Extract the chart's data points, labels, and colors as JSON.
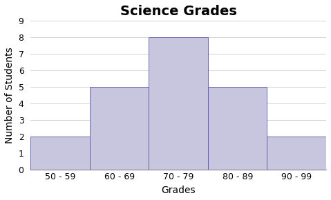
{
  "title": "Science Grades",
  "xlabel": "Grades",
  "ylabel": "Number of Students",
  "categories": [
    "50 - 59",
    "60 - 69",
    "70 - 79",
    "80 - 89",
    "90 - 99"
  ],
  "values": [
    2,
    5,
    8,
    5,
    2
  ],
  "bar_color": "#c8c5df",
  "bar_edge_color": "#5555aa",
  "ylim": [
    0,
    9
  ],
  "yticks": [
    0,
    1,
    2,
    3,
    4,
    5,
    6,
    7,
    8,
    9
  ],
  "title_fontsize": 14,
  "axis_label_fontsize": 10,
  "tick_fontsize": 9,
  "bar_width": 1.0,
  "grid_color": "#cccccc",
  "grid_linewidth": 0.6,
  "title_fontweight": "bold"
}
